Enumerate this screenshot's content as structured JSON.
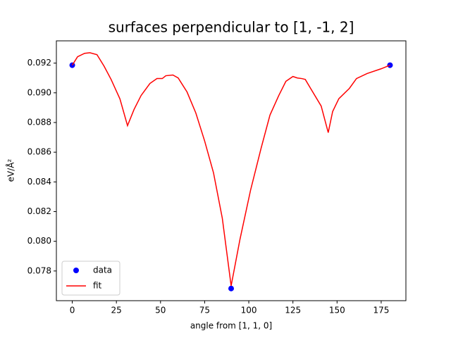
{
  "chart_data": {
    "type": "line",
    "title": "surfaces perpendicular to [1, -1, 2]",
    "xlabel": "angle from [1, 1, 0]",
    "ylabel": "eV/Å²",
    "xlim": [
      -9,
      189
    ],
    "xticks": [
      0,
      25,
      50,
      75,
      100,
      125,
      150,
      175
    ],
    "ylim": [
      0.076,
      0.0935
    ],
    "yticks": [
      0.078,
      {
        "value": 0.08,
        "label": "0.080"
      },
      0.082,
      0.084,
      0.086,
      0.088,
      {
        "value": 0.09,
        "label": "0.090"
      },
      0.092
    ],
    "legend": "lower left",
    "series": [
      {
        "name": "data",
        "color": "#0000ff",
        "marker": "o",
        "x": [
          0,
          90,
          180
        ],
        "values": [
          0.09186,
          0.07682,
          0.09186
        ]
      },
      {
        "name": "fit",
        "color": "#ff0000",
        "x": [
          0,
          3,
          7,
          10,
          14,
          18,
          22,
          27,
          31.3,
          35,
          39,
          44,
          48,
          51,
          53,
          57,
          60,
          65,
          70,
          75,
          80,
          85,
          90,
          95,
          101,
          107,
          112,
          117,
          121,
          125,
          127.5,
          130,
          132,
          135,
          141,
          145,
          147.5,
          151,
          157,
          161,
          167,
          175,
          180
        ],
        "values": [
          0.09186,
          0.09243,
          0.09266,
          0.0927,
          0.09257,
          0.0918,
          0.0909,
          0.08959,
          0.08779,
          0.08888,
          0.08982,
          0.09063,
          0.09096,
          0.09096,
          0.09115,
          0.0912,
          0.091,
          0.09006,
          0.08864,
          0.08675,
          0.08462,
          0.08155,
          0.077,
          0.08013,
          0.08344,
          0.08628,
          0.0885,
          0.08982,
          0.09077,
          0.0911,
          0.091,
          0.09096,
          0.0909,
          0.0903,
          0.08911,
          0.08732,
          0.08874,
          0.0896,
          0.0903,
          0.09096,
          0.0913,
          0.09162,
          0.09186
        ]
      }
    ]
  }
}
